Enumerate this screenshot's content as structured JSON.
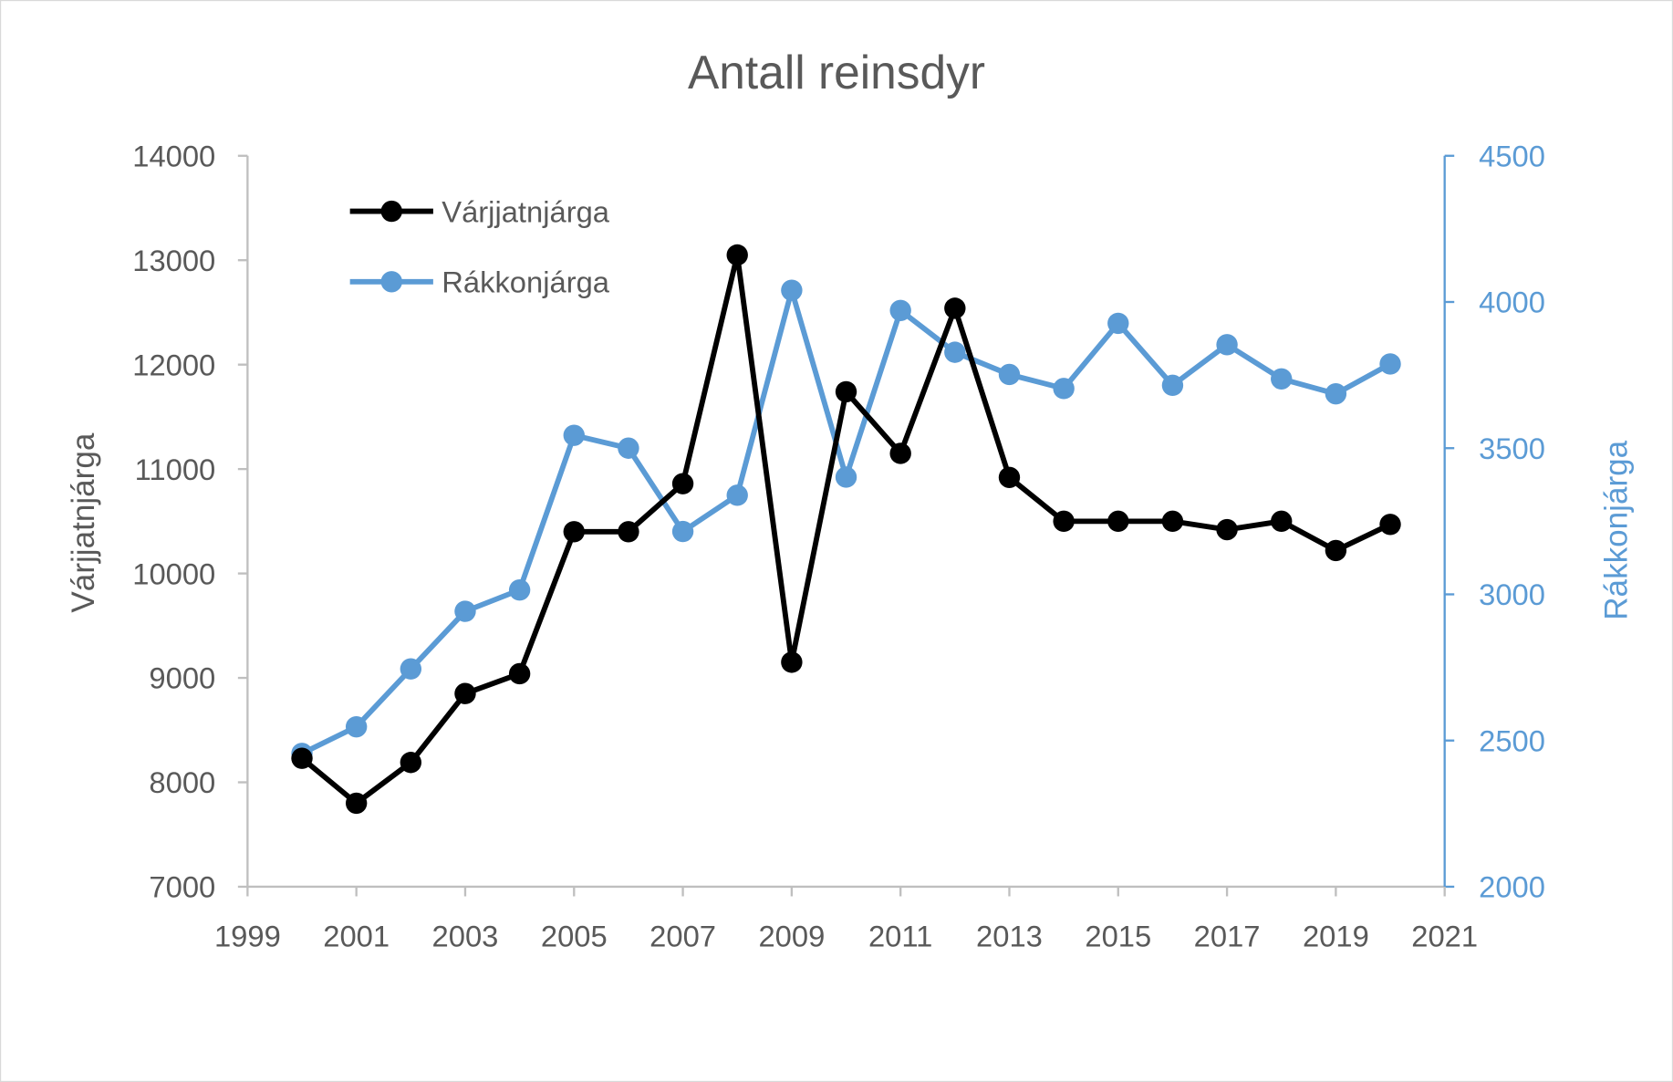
{
  "chart_data": {
    "type": "line",
    "title": "Antall reinsdyr",
    "xlabel": "",
    "ylabel": "Várjjatnjárga",
    "y2label": "Rákkonjárga",
    "xlim": [
      1999,
      2021
    ],
    "xticks": [
      1999,
      2001,
      2003,
      2005,
      2007,
      2009,
      2011,
      2013,
      2015,
      2017,
      2019,
      2021
    ],
    "ylim": [
      7000,
      14000
    ],
    "yticks": [
      7000,
      8000,
      9000,
      10000,
      11000,
      12000,
      13000,
      14000
    ],
    "y2lim": [
      2000,
      4500
    ],
    "y2ticks": [
      2000,
      2500,
      3000,
      3500,
      4000,
      4500
    ],
    "grid": false,
    "legend_position": "top-left",
    "x": [
      2000,
      2001,
      2002,
      2003,
      2004,
      2005,
      2006,
      2007,
      2008,
      2009,
      2010,
      2011,
      2012,
      2013,
      2014,
      2015,
      2016,
      2017,
      2018,
      2019,
      2020
    ],
    "series": [
      {
        "name": "Várjjatnjárga",
        "axis": "left",
        "color": "#000000",
        "values": [
          8230,
          7800,
          8190,
          8850,
          9040,
          10400,
          10400,
          10860,
          13050,
          9150,
          11740,
          11150,
          12540,
          10920,
          10500,
          10500,
          10500,
          10420,
          10500,
          10220,
          10470
        ]
      },
      {
        "name": "Rákkonjárga",
        "axis": "right",
        "color": "#5b9bd5",
        "values": [
          2456,
          2547,
          2745,
          2942,
          3015,
          3544,
          3500,
          3215,
          3339,
          4040,
          3401,
          3971,
          3828,
          3752,
          3704,
          3927,
          3715,
          3854,
          3737,
          3686,
          3788
        ]
      }
    ]
  },
  "colors": {
    "axis_text": "#595959",
    "axis_line": "#bfbfbf",
    "right_axis": "#5b9bd5"
  }
}
